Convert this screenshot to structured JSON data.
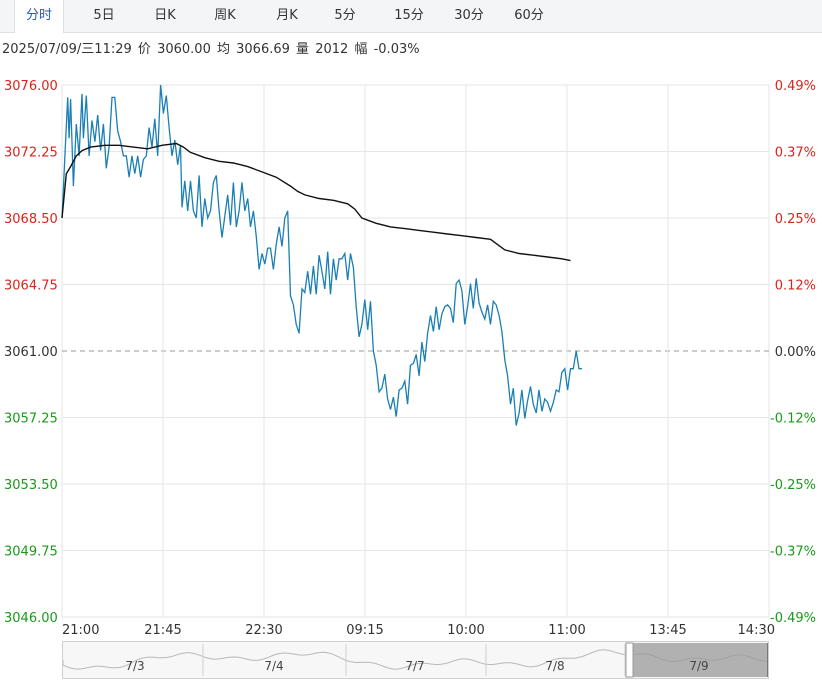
{
  "tabs": [
    {
      "label": "分时",
      "active": true
    },
    {
      "label": "5日",
      "active": false
    },
    {
      "label": "日K",
      "active": false
    },
    {
      "label": "周K",
      "active": false
    },
    {
      "label": "月K",
      "active": false
    },
    {
      "label": "5分",
      "active": false
    },
    {
      "label": "15分",
      "active": false
    },
    {
      "label": "30分",
      "active": false
    },
    {
      "label": "60分",
      "active": false
    }
  ],
  "info": {
    "datetime": "2025/07/09/三11:29",
    "price_label": "价",
    "price": "3060.00",
    "avg_label": "均",
    "avg": "3066.69",
    "volume_label": "量",
    "volume": "2012",
    "change_label": "幅",
    "change": "-0.03%"
  },
  "colors": {
    "up": "#d9241c",
    "down": "#1a9a1a",
    "price_line": "#1b7fb4",
    "avg_line": "#111111",
    "grid": "#e6e6e6",
    "baseline": "#999999"
  },
  "chart_data": {
    "type": "line",
    "title": "",
    "xlabel": "",
    "ylabel": "",
    "ylim": [
      3046.0,
      3076.0
    ],
    "prev_close": 3061.0,
    "y_ticks": [
      "3076.00",
      "3072.25",
      "3068.50",
      "3064.75",
      "3061.00",
      "3057.25",
      "3053.50",
      "3049.75",
      "3046.00"
    ],
    "pct_ticks": [
      "0.49%",
      "0.37%",
      "0.25%",
      "0.12%",
      "0.00%",
      "-0.12%",
      "-0.25%",
      "-0.37%",
      "-0.49%"
    ],
    "x_ticks": [
      "21:00",
      "21:45",
      "22:30",
      "09:15",
      "10:00",
      "11:00",
      "13:45",
      "14:30"
    ],
    "sessions_total_minutes": 495,
    "grid": true,
    "series": [
      {
        "key": "price",
        "points": [
          [
            0,
            3068.5
          ],
          [
            2,
            3072.0
          ],
          [
            4,
            3075.3
          ],
          [
            5,
            3073.0
          ],
          [
            6,
            3075.2
          ],
          [
            8,
            3070.3
          ],
          [
            10,
            3073.8
          ],
          [
            12,
            3072.0
          ],
          [
            14,
            3075.5
          ],
          [
            15,
            3073.0
          ],
          [
            17,
            3075.4
          ],
          [
            19,
            3072.0
          ],
          [
            21,
            3074.0
          ],
          [
            23,
            3072.8
          ],
          [
            25,
            3074.3
          ],
          [
            27,
            3072.3
          ],
          [
            29,
            3073.8
          ],
          [
            31,
            3071.3
          ],
          [
            33,
            3072.5
          ],
          [
            35,
            3075.3
          ],
          [
            37,
            3075.3
          ],
          [
            39,
            3073.4
          ],
          [
            41,
            3072.8
          ],
          [
            43,
            3072.0
          ],
          [
            45,
            3072.0
          ],
          [
            47,
            3070.8
          ],
          [
            49,
            3072.0
          ],
          [
            51,
            3071.0
          ],
          [
            53,
            3072.0
          ],
          [
            55,
            3070.8
          ],
          [
            57,
            3071.8
          ],
          [
            59,
            3072.0
          ],
          [
            61,
            3073.6
          ],
          [
            63,
            3072.5
          ],
          [
            65,
            3074.1
          ],
          [
            67,
            3072.0
          ],
          [
            69,
            3076.0
          ],
          [
            71,
            3074.4
          ],
          [
            73,
            3075.4
          ],
          [
            75,
            3073.6
          ],
          [
            77,
            3072.0
          ],
          [
            79,
            3072.9
          ],
          [
            81,
            3071.5
          ],
          [
            83,
            3072.6
          ],
          [
            84,
            3069.1
          ],
          [
            86,
            3070.6
          ],
          [
            88,
            3068.9
          ],
          [
            90,
            3070.6
          ],
          [
            92,
            3068.9
          ],
          [
            94,
            3068.5
          ],
          [
            96,
            3070.9
          ],
          [
            98,
            3068.0
          ],
          [
            100,
            3069.6
          ],
          [
            102,
            3068.5
          ],
          [
            104,
            3068.9
          ],
          [
            106,
            3070.5
          ],
          [
            108,
            3070.9
          ],
          [
            110,
            3068.9
          ],
          [
            112,
            3067.4
          ],
          [
            114,
            3068.6
          ],
          [
            116,
            3069.8
          ],
          [
            118,
            3068.1
          ],
          [
            120,
            3070.5
          ],
          [
            122,
            3068.0
          ],
          [
            124,
            3068.9
          ],
          [
            126,
            3070.5
          ],
          [
            128,
            3068.9
          ],
          [
            130,
            3069.6
          ],
          [
            132,
            3068.0
          ],
          [
            134,
            3068.9
          ],
          [
            136,
            3067.5
          ],
          [
            138,
            3065.6
          ],
          [
            140,
            3066.5
          ],
          [
            142,
            3065.9
          ],
          [
            144,
            3066.8
          ],
          [
            146,
            3066.8
          ],
          [
            148,
            3065.6
          ],
          [
            150,
            3067.0
          ],
          [
            152,
            3068.0
          ],
          [
            154,
            3066.9
          ],
          [
            156,
            3068.5
          ],
          [
            158,
            3068.9
          ],
          [
            160,
            3064.1
          ],
          [
            162,
            3063.6
          ],
          [
            164,
            3062.5
          ],
          [
            166,
            3062.0
          ],
          [
            168,
            3064.5
          ],
          [
            170,
            3064.3
          ],
          [
            172,
            3065.5
          ],
          [
            174,
            3064.2
          ],
          [
            176,
            3065.8
          ],
          [
            178,
            3064.2
          ],
          [
            180,
            3066.4
          ],
          [
            182,
            3065.5
          ],
          [
            184,
            3064.5
          ],
          [
            186,
            3066.6
          ],
          [
            188,
            3064.2
          ],
          [
            190,
            3066.2
          ],
          [
            192,
            3065.0
          ],
          [
            194,
            3066.2
          ],
          [
            196,
            3066.2
          ],
          [
            198,
            3066.5
          ],
          [
            200,
            3065.0
          ],
          [
            202,
            3066.5
          ],
          [
            204,
            3065.7
          ],
          [
            206,
            3063.5
          ],
          [
            208,
            3061.8
          ],
          [
            210,
            3062.5
          ],
          [
            212,
            3063.9
          ],
          [
            214,
            3062.2
          ],
          [
            216,
            3063.8
          ],
          [
            218,
            3061.0
          ],
          [
            220,
            3060.2
          ],
          [
            222,
            3058.7
          ],
          [
            224,
            3058.9
          ],
          [
            226,
            3059.7
          ],
          [
            228,
            3058.3
          ],
          [
            230,
            3057.7
          ],
          [
            232,
            3058.4
          ],
          [
            234,
            3057.3
          ],
          [
            236,
            3058.8
          ],
          [
            238,
            3058.9
          ],
          [
            240,
            3059.3
          ],
          [
            242,
            3058.0
          ],
          [
            244,
            3060.2
          ],
          [
            246,
            3060.3
          ],
          [
            248,
            3060.8
          ],
          [
            250,
            3059.6
          ],
          [
            252,
            3061.5
          ],
          [
            254,
            3060.4
          ],
          [
            256,
            3062.0
          ],
          [
            258,
            3063.0
          ],
          [
            260,
            3062.1
          ],
          [
            262,
            3063.5
          ],
          [
            264,
            3062.2
          ],
          [
            266,
            3063.1
          ],
          [
            268,
            3063.5
          ],
          [
            270,
            3063.6
          ],
          [
            272,
            3063.4
          ],
          [
            274,
            3062.6
          ],
          [
            276,
            3064.8
          ],
          [
            278,
            3065.0
          ],
          [
            280,
            3064.4
          ],
          [
            282,
            3062.5
          ],
          [
            284,
            3063.5
          ],
          [
            286,
            3064.8
          ],
          [
            288,
            3063.4
          ],
          [
            290,
            3065.1
          ],
          [
            292,
            3063.7
          ],
          [
            294,
            3063.2
          ],
          [
            296,
            3062.8
          ],
          [
            298,
            3063.6
          ],
          [
            300,
            3062.5
          ],
          [
            302,
            3063.8
          ],
          [
            304,
            3063.6
          ],
          [
            306,
            3063.0
          ],
          [
            308,
            3062.1
          ],
          [
            310,
            3060.5
          ],
          [
            312,
            3059.6
          ],
          [
            314,
            3058.0
          ],
          [
            316,
            3058.9
          ],
          [
            318,
            3056.8
          ],
          [
            320,
            3057.5
          ],
          [
            322,
            3058.8
          ],
          [
            324,
            3057.2
          ],
          [
            326,
            3058.2
          ],
          [
            328,
            3059.0
          ],
          [
            330,
            3058.0
          ],
          [
            332,
            3057.5
          ],
          [
            334,
            3058.8
          ],
          [
            336,
            3057.6
          ],
          [
            338,
            3058.3
          ],
          [
            340,
            3058.1
          ],
          [
            342,
            3057.6
          ],
          [
            344,
            3058.1
          ],
          [
            346,
            3058.8
          ],
          [
            348,
            3058.7
          ],
          [
            350,
            3059.8
          ],
          [
            352,
            3060.0
          ],
          [
            354,
            3058.8
          ],
          [
            356,
            3060.0
          ],
          [
            358,
            3060.0
          ],
          [
            360,
            3061.0
          ],
          [
            362,
            3060.0
          ],
          [
            364,
            3060.0
          ]
        ]
      },
      {
        "key": "avg",
        "points": [
          [
            0,
            3068.5
          ],
          [
            3,
            3071.0
          ],
          [
            6,
            3071.4
          ],
          [
            10,
            3072.0
          ],
          [
            14,
            3072.3
          ],
          [
            20,
            3072.5
          ],
          [
            30,
            3072.6
          ],
          [
            40,
            3072.6
          ],
          [
            50,
            3072.5
          ],
          [
            60,
            3072.4
          ],
          [
            70,
            3072.6
          ],
          [
            80,
            3072.7
          ],
          [
            85,
            3072.5
          ],
          [
            90,
            3072.2
          ],
          [
            100,
            3071.9
          ],
          [
            110,
            3071.7
          ],
          [
            120,
            3071.6
          ],
          [
            130,
            3071.4
          ],
          [
            140,
            3071.1
          ],
          [
            150,
            3070.8
          ],
          [
            160,
            3070.3
          ],
          [
            165,
            3070.0
          ],
          [
            170,
            3069.8
          ],
          [
            180,
            3069.6
          ],
          [
            190,
            3069.5
          ],
          [
            200,
            3069.3
          ],
          [
            205,
            3069.0
          ],
          [
            210,
            3068.5
          ],
          [
            220,
            3068.2
          ],
          [
            230,
            3068.0
          ],
          [
            240,
            3067.9
          ],
          [
            250,
            3067.8
          ],
          [
            260,
            3067.7
          ],
          [
            270,
            3067.6
          ],
          [
            280,
            3067.5
          ],
          [
            290,
            3067.4
          ],
          [
            300,
            3067.3
          ],
          [
            305,
            3067.0
          ],
          [
            310,
            3066.7
          ],
          [
            320,
            3066.5
          ],
          [
            330,
            3066.4
          ],
          [
            340,
            3066.3
          ],
          [
            350,
            3066.2
          ],
          [
            356,
            3066.1
          ]
        ]
      }
    ]
  },
  "navigator": {
    "labels": [
      "7/3",
      "7/4",
      "7/7",
      "7/8",
      "7/9"
    ]
  }
}
